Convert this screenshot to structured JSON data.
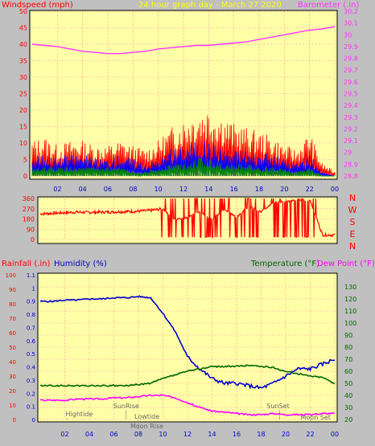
{
  "chart_data": [
    {
      "type": "line",
      "title": "24 hour graph day - March 27 2020",
      "left_axis_label": "Windspeed (mph)",
      "right_axis_label": "Barometer (.in)",
      "left_ylim": [
        0,
        50
      ],
      "left_ticks": [
        "0",
        "5",
        "10",
        "15",
        "20",
        "25",
        "30",
        "35",
        "40",
        "45",
        "50"
      ],
      "right_ylim": [
        28.8,
        30.2
      ],
      "right_ticks": [
        "28.8",
        "28.9",
        "29",
        "29.1",
        "29.2",
        "29.3",
        "29.4",
        "29.5",
        "29.6",
        "29.7",
        "29.8",
        "29.9",
        "30",
        "30.1",
        "30.2"
      ],
      "x_ticks": [
        "02",
        "04",
        "06",
        "08",
        "10",
        "12",
        "14",
        "16",
        "18",
        "20",
        "22",
        "00"
      ],
      "grid": true,
      "hours": [
        0,
        1,
        2,
        3,
        4,
        5,
        6,
        7,
        8,
        9,
        10,
        11,
        12,
        13,
        14,
        15,
        16,
        17,
        18,
        19,
        20,
        21,
        22,
        23,
        24
      ],
      "series": [
        {
          "name": "Barometer",
          "color": "#ff33ff",
          "axis": "right",
          "values": [
            29.92,
            29.91,
            29.9,
            29.88,
            29.86,
            29.85,
            29.84,
            29.84,
            29.85,
            29.86,
            29.88,
            29.89,
            29.9,
            29.91,
            29.91,
            29.92,
            29.93,
            29.94,
            29.96,
            29.98,
            30.0,
            30.02,
            30.04,
            30.05,
            30.07
          ]
        },
        {
          "name": "Wind gust",
          "color": "#ff0000",
          "axis": "left",
          "values": [
            8,
            9,
            7,
            8,
            8,
            7,
            7,
            8,
            7,
            6,
            8,
            11,
            13,
            15,
            16,
            14,
            12,
            11,
            10,
            9,
            7,
            6,
            10,
            3,
            1
          ]
        },
        {
          "name": "Wind avg",
          "color": "#0000ff",
          "axis": "left",
          "values": [
            5,
            5,
            4,
            5,
            5,
            4,
            4,
            5,
            4,
            3,
            4,
            6,
            7,
            8,
            8,
            7,
            6,
            6,
            5,
            5,
            4,
            3,
            5,
            1,
            0
          ]
        },
        {
          "name": "Wind low",
          "color": "#008800",
          "axis": "left",
          "values": [
            2,
            2,
            2,
            2,
            2,
            2,
            2,
            2,
            1,
            1,
            2,
            3,
            3,
            4,
            4,
            3,
            3,
            3,
            2,
            2,
            2,
            1,
            2,
            0,
            0
          ]
        }
      ]
    },
    {
      "type": "line",
      "left_ylim": [
        0,
        360
      ],
      "left_ticks": [
        "0",
        "90",
        "180",
        "270",
        "360"
      ],
      "right_labels": [
        "N",
        "W",
        "S",
        "E",
        "N"
      ],
      "x_ticks": [
        "02",
        "04",
        "06",
        "08",
        "10",
        "12",
        "14",
        "16",
        "18",
        "20",
        "22",
        "00"
      ],
      "series": [
        {
          "name": "Wind direction",
          "color": "#ff0000",
          "hours": [
            0,
            1,
            2,
            3,
            4,
            5,
            6,
            7,
            8,
            9,
            10,
            11,
            12,
            13,
            14,
            15,
            16,
            17,
            18,
            19,
            20,
            21,
            22,
            23,
            24
          ],
          "values": [
            225,
            230,
            235,
            240,
            238,
            240,
            242,
            245,
            248,
            255,
            270,
            180,
            200,
            250,
            180,
            270,
            200,
            300,
            250,
            330,
            340,
            350,
            345,
            40,
            40
          ]
        }
      ]
    },
    {
      "type": "line",
      "left_axis_label": "Rainfall (.in)",
      "left_axis_label2": "Humidity (%)",
      "right_axis_label": "Temperature (°F)",
      "right_axis_label2": "Dew Point (°F)",
      "rain_ticks": [
        "0",
        "10",
        "20",
        "30",
        "40",
        "50",
        "60",
        "70",
        "80",
        "90",
        "100"
      ],
      "humidity_ticks": [
        "0",
        "0.1",
        "0.2",
        "0.3",
        "0.4",
        "0.5",
        "0.6",
        "0.7",
        "0.8",
        "0.9",
        "1",
        "1.1"
      ],
      "temp_ylim": [
        20,
        140
      ],
      "temp_ticks": [
        "20",
        "30",
        "40",
        "50",
        "60",
        "70",
        "80",
        "90",
        "100",
        "110",
        "120",
        "130"
      ],
      "x_ticks": [
        "02",
        "04",
        "06",
        "08",
        "10",
        "12",
        "14",
        "16",
        "18",
        "20",
        "22",
        "00"
      ],
      "events": [
        "Hightide",
        "SunRise",
        "Lowtide",
        "Moon Rise",
        "SunSet",
        "Moon Set"
      ],
      "hours": [
        0,
        1,
        2,
        3,
        4,
        5,
        6,
        7,
        8,
        9,
        10,
        11,
        12,
        13,
        14,
        15,
        16,
        17,
        18,
        19,
        20,
        21,
        22,
        23,
        24
      ],
      "series": [
        {
          "name": "Humidity",
          "color": "#0000cc",
          "values": [
            118,
            118,
            119,
            119,
            120,
            120,
            121,
            121,
            122,
            121,
            108,
            93,
            72,
            62,
            54,
            50,
            50,
            48,
            46,
            50,
            56,
            62,
            62,
            66,
            70
          ]
        },
        {
          "name": "Temperature",
          "color": "#006600",
          "values": [
            48,
            48,
            48,
            48,
            48,
            48,
            48,
            48,
            49,
            50,
            54,
            57,
            60,
            62,
            64,
            64,
            64,
            65,
            64,
            63,
            60,
            58,
            56,
            55,
            50
          ]
        },
        {
          "name": "Dew Point",
          "color": "#ff00ff",
          "values": [
            36,
            36,
            36,
            37,
            37,
            37,
            38,
            38,
            39,
            40,
            40,
            38,
            34,
            30,
            27,
            26,
            25,
            24,
            24,
            25,
            24,
            24,
            24,
            25,
            25
          ]
        }
      ]
    }
  ],
  "colors": {
    "panel": "#ffffa8",
    "grid": "#ff8888",
    "frame": "#000000"
  }
}
